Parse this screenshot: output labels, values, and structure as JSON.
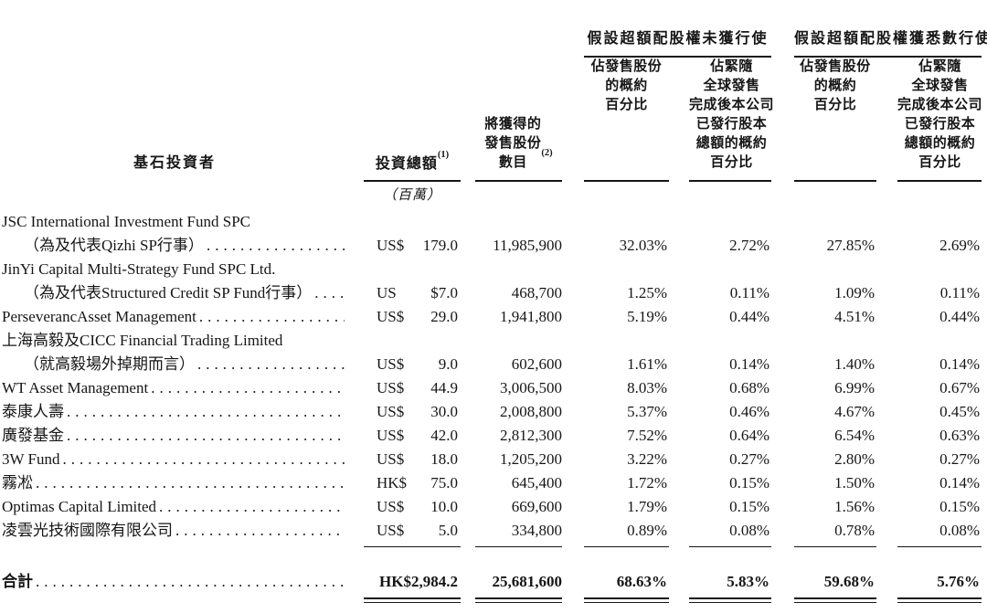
{
  "table": {
    "header": {
      "investor": "基石投資者",
      "investment": {
        "label": "投資總額",
        "sup": "(1)",
        "unit_note": "（百萬）"
      },
      "shares": {
        "label": "將獲得的\n發售股份\n數目",
        "sup": "(2)"
      },
      "group_no_exercise": "假設超額配股權未獲行使",
      "group_full_exercise": "假設超額配股權獲悉數行使",
      "pct_of_offer_shares": "佔發售股份\n的概約\n百分比",
      "pct_of_issued_capital": "佔緊隨\n全球發售\n完成後本公司\n已發行股本\n總額的概約\n百分比"
    },
    "rows": [
      {
        "name": "JSC International Investment Fund SPC",
        "name2": "（為及代表Qizhi SP行事）",
        "currency": "US$",
        "amount": "179.0",
        "shares": "11,985,900",
        "pct_offer_no": "32.03%",
        "pct_capital_no": "2.72%",
        "pct_offer_full": "27.85%",
        "pct_capital_full": "2.69%"
      },
      {
        "name": "JinYi Capital Multi-Strategy Fund SPC Ltd.",
        "name2": "（為及代表Structured Credit SP Fund行事）",
        "currency": "US",
        "amount": "$7.0",
        "shares": "468,700",
        "pct_offer_no": "1.25%",
        "pct_capital_no": "0.11%",
        "pct_offer_full": "1.09%",
        "pct_capital_full": "0.11%"
      },
      {
        "name": "PerseverancAsset Management",
        "currency": "US$",
        "amount": "29.0",
        "shares": "1,941,800",
        "pct_offer_no": "5.19%",
        "pct_capital_no": "0.44%",
        "pct_offer_full": "4.51%",
        "pct_capital_full": "0.44%"
      },
      {
        "name": "上海高毅及CICC Financial Trading Limited",
        "name2": "（就高毅場外掉期而言）",
        "currency": "US$",
        "amount": "9.0",
        "shares": "602,600",
        "pct_offer_no": "1.61%",
        "pct_capital_no": "0.14%",
        "pct_offer_full": "1.40%",
        "pct_capital_full": "0.14%"
      },
      {
        "name": "WT Asset Management",
        "currency": "US$",
        "amount": "44.9",
        "shares": "3,006,500",
        "pct_offer_no": "8.03%",
        "pct_capital_no": "0.68%",
        "pct_offer_full": "6.99%",
        "pct_capital_full": "0.67%"
      },
      {
        "name": "泰康人壽",
        "currency": "US$",
        "amount": "30.0",
        "shares": "2,008,800",
        "pct_offer_no": "5.37%",
        "pct_capital_no": "0.46%",
        "pct_offer_full": "4.67%",
        "pct_capital_full": "0.45%"
      },
      {
        "name": "廣發基金",
        "currency": "US$",
        "amount": "42.0",
        "shares": "2,812,300",
        "pct_offer_no": "7.52%",
        "pct_capital_no": "0.64%",
        "pct_offer_full": "6.54%",
        "pct_capital_full": "0.63%"
      },
      {
        "name": "3W Fund",
        "currency": "US$",
        "amount": "18.0",
        "shares": "1,205,200",
        "pct_offer_no": "3.22%",
        "pct_capital_no": "0.27%",
        "pct_offer_full": "2.80%",
        "pct_capital_full": "0.27%"
      },
      {
        "name": "霧凇",
        "currency": "HK$",
        "amount": "75.0",
        "shares": "645,400",
        "pct_offer_no": "1.72%",
        "pct_capital_no": "0.15%",
        "pct_offer_full": "1.50%",
        "pct_capital_full": "0.14%"
      },
      {
        "name": "Optimas Capital Limited",
        "currency": "US$",
        "amount": "10.0",
        "shares": "669,600",
        "pct_offer_no": "1.79%",
        "pct_capital_no": "0.15%",
        "pct_offer_full": "1.56%",
        "pct_capital_full": "0.15%"
      },
      {
        "name": "凌雲光技術國際有限公司",
        "currency": "US$",
        "amount": "5.0",
        "shares": "334,800",
        "pct_offer_no": "0.89%",
        "pct_capital_no": "0.08%",
        "pct_offer_full": "0.78%",
        "pct_capital_full": "0.08%"
      }
    ],
    "total": {
      "label": "合計",
      "investment": "HK$2,984.2",
      "shares": "25,681,600",
      "pct_offer_no": "68.63%",
      "pct_capital_no": "5.83%",
      "pct_offer_full": "59.68%",
      "pct_capital_full": "5.76%"
    }
  }
}
